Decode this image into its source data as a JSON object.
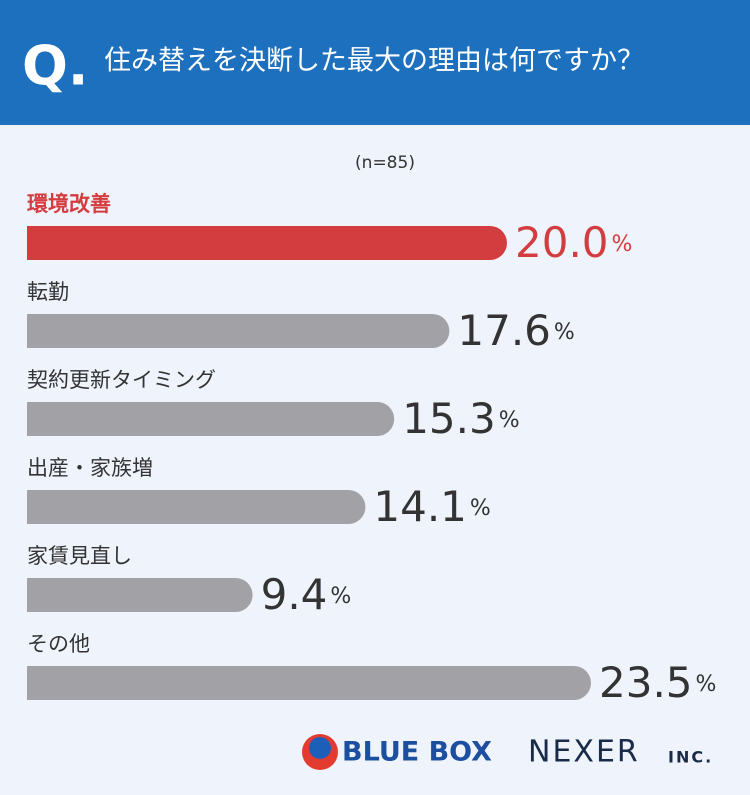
{
  "chart_data": {
    "type": "bar",
    "orientation": "horizontal",
    "question_label": "Q.",
    "title": "住み替えを決断した最大の理由は何ですか？",
    "subtitle": "(n=85)",
    "categories": [
      "環境改善",
      "転勤",
      "契約更新タイミング",
      "出産・家族増",
      "家賃見直し",
      "その他"
    ],
    "values": [
      20.0,
      17.6,
      15.3,
      14.1,
      9.4,
      23.5
    ],
    "value_labels": [
      "20.0%",
      "17.6%",
      "15.3%",
      "14.1%",
      "9.4%",
      "23.5%"
    ],
    "color": "#a2a2a6",
    "colors": [
      "#d43d3f",
      "#a2a2a6",
      "#a2a2a6",
      "#a2a2a6",
      "#a2a2a6",
      "#a2a2a6"
    ],
    "xlim": [
      0,
      25
    ]
  },
  "footer": {
    "logo_1": "BLUE BOX",
    "logo_2": "NEXER",
    "logo_2_suffix": "INC."
  }
}
